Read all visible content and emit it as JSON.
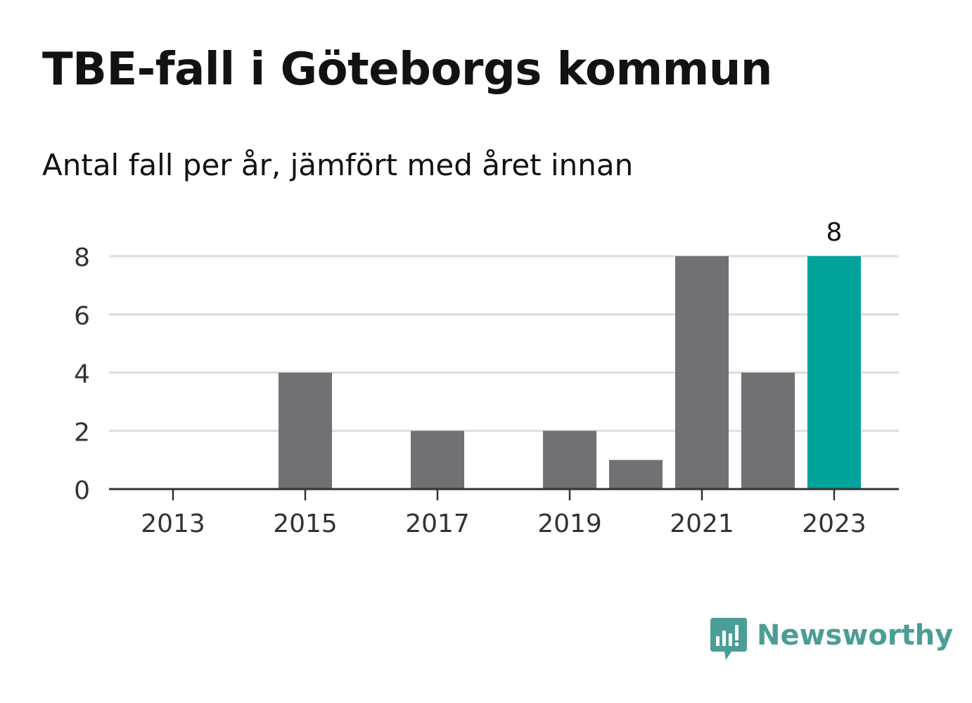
{
  "header": {
    "title": "TBE-fall i Göteborgs kommun",
    "subtitle": "Antal fall per år, jämfört med året innan"
  },
  "brand": {
    "name": "Newsworthy",
    "icon": "newsworthy-logo-icon",
    "color": "#4a9e95"
  },
  "colors": {
    "bar": "#707075",
    "highlight": "#00a39a",
    "grid": "#dddddd",
    "axis": "#333333",
    "text": "#333333"
  },
  "chart_data": {
    "type": "bar",
    "categories": [
      "2013",
      "2014",
      "2015",
      "2016",
      "2017",
      "2018",
      "2019",
      "2020",
      "2021",
      "2022",
      "2023"
    ],
    "values": [
      0,
      0,
      4,
      0,
      2,
      0,
      2,
      1,
      8,
      4,
      8
    ],
    "highlight_index": 10,
    "x_tick_labels": [
      "2013",
      "2015",
      "2017",
      "2019",
      "2021",
      "2023"
    ],
    "y_ticks": [
      0,
      2,
      4,
      6,
      8
    ],
    "ylim": [
      0,
      8
    ],
    "data_labels": [
      {
        "index": 10,
        "text": "8"
      }
    ],
    "grid": true,
    "xlabel": "",
    "ylabel": ""
  }
}
